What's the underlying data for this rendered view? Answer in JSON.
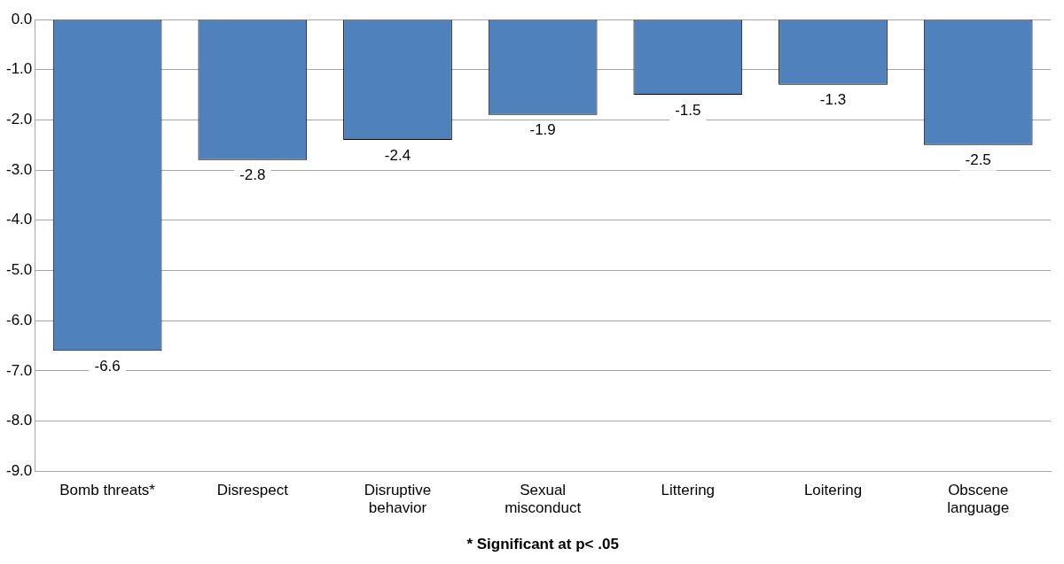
{
  "chart_data": {
    "type": "bar",
    "categories": [
      "Bomb threats*",
      "Disrespect",
      "Disruptive behavior",
      "Sexual misconduct",
      "Littering",
      "Loitering",
      "Obscene language"
    ],
    "values": [
      -6.6,
      -2.8,
      -2.4,
      -1.9,
      -1.5,
      -1.3,
      -2.5
    ],
    "color": "#4f81bd",
    "ylim": [
      -9,
      0
    ],
    "yticks": [
      {
        "value": 0,
        "label": "0.0"
      },
      {
        "value": -1,
        "label": "-1.0"
      },
      {
        "value": -2,
        "label": "-2.0"
      },
      {
        "value": -3,
        "label": "-3.0"
      },
      {
        "value": -4,
        "label": "-4.0"
      },
      {
        "value": -5,
        "label": "-5.0"
      },
      {
        "value": -6,
        "label": "-6.0"
      },
      {
        "value": -7,
        "label": "-7.0"
      },
      {
        "value": -8,
        "label": "-8.0"
      },
      {
        "value": -9,
        "label": "-9.0"
      }
    ],
    "grid": "y",
    "data_labels": true,
    "annotations": [
      "* Significant at p< .05"
    ]
  }
}
